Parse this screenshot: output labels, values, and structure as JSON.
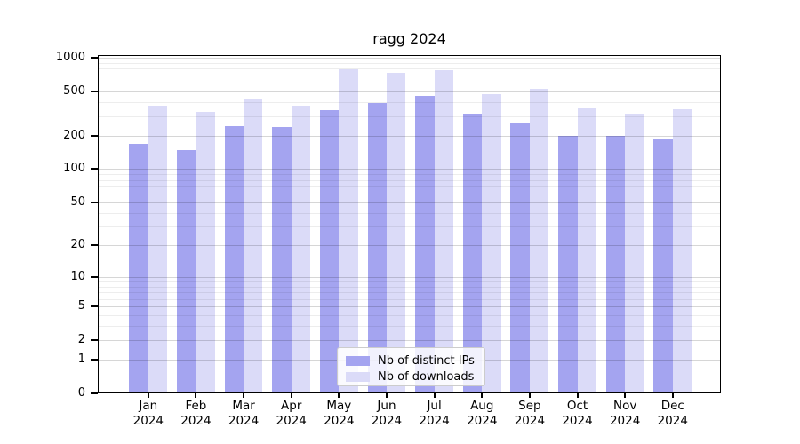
{
  "chart_data": {
    "type": "bar",
    "title": "ragg 2024",
    "categories": [
      "Jan",
      "Feb",
      "Mar",
      "Apr",
      "May",
      "Jun",
      "Jul",
      "Aug",
      "Sep",
      "Oct",
      "Nov",
      "Dec"
    ],
    "x_tick_year": "2024",
    "series": [
      {
        "name": "Nb of distinct IPs",
        "color": "#a4a4f0",
        "values": [
          168,
          148,
          246,
          241,
          337,
          395,
          457,
          313,
          258,
          201,
          198,
          186
        ]
      },
      {
        "name": "Nb of downloads",
        "color": "#dbdbf8",
        "values": [
          371,
          327,
          431,
          371,
          792,
          731,
          777,
          474,
          526,
          354,
          318,
          347
        ]
      }
    ],
    "y_axis": {
      "scale": "log10(1+x)",
      "labeled_ticks": [
        0,
        1,
        2,
        5,
        10,
        20,
        50,
        100,
        200,
        500,
        1000
      ],
      "minor_gridlines": [
        3,
        4,
        6,
        7,
        8,
        9,
        30,
        40,
        60,
        70,
        80,
        90,
        300,
        400,
        600,
        700,
        800,
        900
      ],
      "range": [
        0,
        1055
      ]
    },
    "grid": true,
    "legend_position": "inside-bottom-center"
  }
}
